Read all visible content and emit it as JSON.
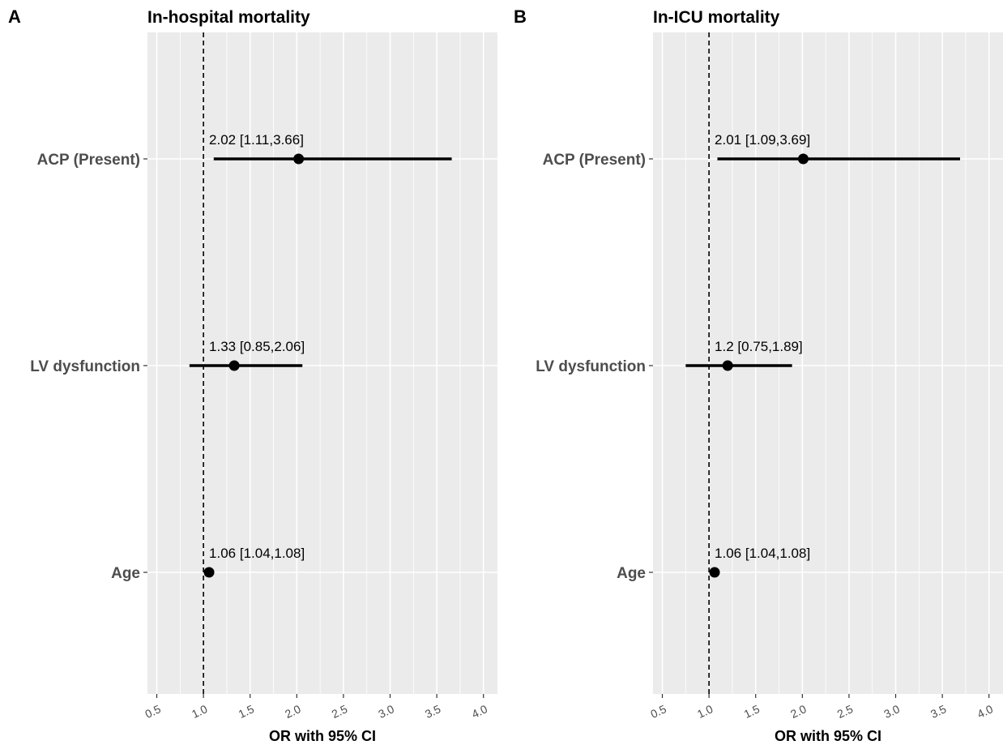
{
  "chart_data": [
    {
      "type": "forest",
      "panel_label": "A",
      "title": "In-hospital mortality",
      "xlabel": "OR with 95% CI",
      "xlim": [
        0.4,
        4.15
      ],
      "xticks": [
        "0.5",
        "1.0",
        "1.5",
        "2.0",
        "2.5",
        "3.0",
        "3.5",
        "4.0"
      ],
      "reference_line": 1.0,
      "grid": true,
      "categories": [
        "ACP (Present)",
        "LV dysfunction",
        "Age"
      ],
      "estimates": [
        2.02,
        1.33,
        1.06
      ],
      "lower": [
        1.11,
        0.85,
        1.04
      ],
      "upper": [
        3.66,
        2.06,
        1.08
      ],
      "labels": [
        "2.02 [1.11,3.66]",
        "1.33 [0.85,2.06]",
        "1.06 [1.04,1.08]"
      ]
    },
    {
      "type": "forest",
      "panel_label": "B",
      "title": "In-ICU mortality",
      "xlabel": "OR with 95% CI",
      "xlim": [
        0.4,
        4.15
      ],
      "xticks": [
        "0.5",
        "1.0",
        "1.5",
        "2.0",
        "2.5",
        "3.0",
        "3.5",
        "4.0"
      ],
      "reference_line": 1.0,
      "grid": true,
      "categories": [
        "ACP (Present)",
        "LV dysfunction",
        "Age"
      ],
      "estimates": [
        2.01,
        1.2,
        1.06
      ],
      "lower": [
        1.09,
        0.75,
        1.04
      ],
      "upper": [
        3.69,
        1.89,
        1.08
      ],
      "labels": [
        "2.01 [1.09,3.69]",
        "1.2 [0.75,1.89]",
        "1.06 [1.04,1.08]"
      ]
    }
  ]
}
